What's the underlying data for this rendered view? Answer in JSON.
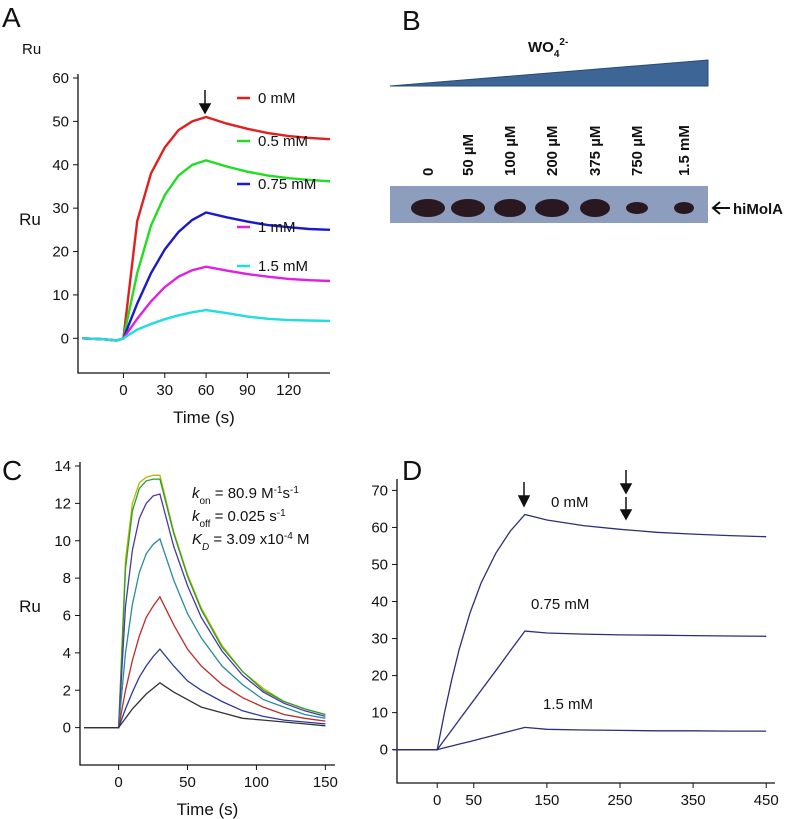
{
  "panels": [
    "A",
    "B",
    "C",
    "D"
  ],
  "chart_data": [
    {
      "type": "line",
      "unit_label": "Ru",
      "ylabel": "Ru",
      "xlabel": "Time (s)",
      "x": [
        -30,
        -15,
        -5,
        0,
        10,
        20,
        30,
        40,
        50,
        60,
        75,
        90,
        105,
        120,
        135,
        150
      ],
      "xlim": [
        -33,
        150
      ],
      "xticks": [
        0,
        30,
        60,
        90,
        120
      ],
      "ylim": [
        -8,
        60
      ],
      "yticks": [
        0,
        10,
        20,
        30,
        40,
        50,
        60
      ],
      "series": [
        {
          "name": "0 mM",
          "color": "#e02020",
          "values": [
            0,
            -0.2,
            -0.5,
            0,
            27,
            38,
            44,
            48,
            50,
            51,
            49.5,
            48.3,
            47.3,
            46.6,
            46.2,
            45.9
          ]
        },
        {
          "name": "0.5 mM",
          "color": "#22dd22",
          "values": [
            0,
            -0.2,
            -0.5,
            0,
            15,
            26,
            33,
            37.5,
            40,
            41,
            39.6,
            38.4,
            37.5,
            36.9,
            36.5,
            36.2
          ]
        },
        {
          "name": "0.75 mM",
          "color": "#1a1acc",
          "values": [
            0,
            -0.2,
            -0.5,
            0,
            8,
            15,
            20.5,
            24.5,
            27.3,
            29,
            27.9,
            26.9,
            26.1,
            25.6,
            25.2,
            25
          ]
        },
        {
          "name": "1 mM",
          "color": "#e020e0",
          "values": [
            0,
            -0.2,
            -0.5,
            0,
            4.5,
            8.5,
            11.8,
            14.2,
            15.7,
            16.5,
            15.6,
            14.8,
            14.2,
            13.7,
            13.4,
            13.2
          ]
        },
        {
          "name": "1.5 mM",
          "color": "#22dddd",
          "values": [
            0,
            -0.2,
            -0.5,
            0,
            2,
            3.3,
            4.4,
            5.3,
            6,
            6.5,
            5.8,
            5,
            4.5,
            4.2,
            4.1,
            4
          ]
        }
      ]
    },
    {
      "type": "line",
      "ylabel": "Ru",
      "xlabel": "Time (s)",
      "x": [
        -25,
        0,
        5,
        10,
        15,
        20,
        25,
        30,
        40,
        50,
        60,
        75,
        90,
        105,
        120,
        135,
        150
      ],
      "xlim": [
        -28,
        157
      ],
      "xticks": [
        0,
        50,
        100,
        150
      ],
      "ylim": [
        -2,
        14
      ],
      "yticks": [
        0,
        2,
        4,
        6,
        8,
        10,
        12,
        14
      ],
      "annotations": [
        [
          "k",
          "on",
          " = 80.9 M",
          "-1",
          "s",
          "-1"
        ],
        [
          "k",
          "off",
          " = 0.025 s",
          "-1"
        ],
        [
          "K",
          "D",
          " = 3.09 x10",
          "-4",
          " M"
        ]
      ],
      "series": [
        {
          "color": "#b8b800",
          "values": [
            0,
            0,
            9.0,
            12.0,
            13.1,
            13.4,
            13.5,
            13.5,
            10.5,
            8.2,
            6.4,
            4.4,
            3.0,
            2.1,
            1.4,
            1.0,
            0.7
          ]
        },
        {
          "color": "#2e9e2e",
          "values": [
            0,
            0,
            8.5,
            11.6,
            12.8,
            13.2,
            13.3,
            13.3,
            10.4,
            8.1,
            6.3,
            4.3,
            3.0,
            2.0,
            1.4,
            1.0,
            0.7
          ]
        },
        {
          "color": "#4a3aa0",
          "values": [
            0,
            0,
            6.5,
            9.5,
            11.2,
            12.0,
            12.4,
            12.5,
            9.7,
            7.6,
            5.9,
            4.1,
            2.8,
            1.9,
            1.3,
            0.9,
            0.6
          ]
        },
        {
          "color": "#2a8aa0",
          "values": [
            0,
            0,
            4.0,
            6.6,
            8.3,
            9.3,
            9.8,
            10.1,
            7.9,
            6.1,
            4.8,
            3.3,
            2.3,
            1.5,
            1.1,
            0.7,
            0.5
          ]
        },
        {
          "color": "#c02a2a",
          "values": [
            0,
            0,
            2.0,
            3.6,
            4.9,
            5.9,
            6.5,
            7.0,
            5.5,
            4.2,
            3.3,
            2.3,
            1.6,
            1.1,
            0.7,
            0.5,
            0.35
          ]
        },
        {
          "color": "#2a3a9a",
          "values": [
            0,
            0,
            1.0,
            1.9,
            2.7,
            3.3,
            3.8,
            4.2,
            3.3,
            2.5,
            2.0,
            1.4,
            0.9,
            0.6,
            0.4,
            0.3,
            0.2
          ]
        },
        {
          "color": "#333333",
          "values": [
            0,
            0,
            0.5,
            1.0,
            1.4,
            1.8,
            2.1,
            2.4,
            1.9,
            1.5,
            1.1,
            0.8,
            0.5,
            0.4,
            0.3,
            0.2,
            0.1
          ]
        }
      ]
    },
    {
      "type": "line",
      "xlabel": "Time (s)",
      "x": [
        -60,
        0,
        10,
        20,
        30,
        45,
        60,
        80,
        100,
        120,
        150,
        200,
        250,
        300,
        350,
        400,
        450
      ],
      "xlim": [
        -55,
        462
      ],
      "xticks": [
        0,
        50,
        150,
        250,
        350,
        450
      ],
      "ylim": [
        -9,
        72
      ],
      "yticks": [
        0,
        10,
        20,
        30,
        40,
        50,
        60,
        70
      ],
      "series": [
        {
          "name": "0 mM",
          "color": "#2e2e7a",
          "values": [
            0,
            0,
            10,
            19,
            27,
            37,
            45,
            53,
            59,
            63.5,
            62,
            60.5,
            59.5,
            58.7,
            58.2,
            57.8,
            57.5
          ]
        },
        {
          "name": "0.75 mM",
          "color": "#2e2e7a",
          "values": [
            0,
            0,
            2.7,
            5.3,
            8,
            12,
            16,
            21.3,
            26.7,
            32,
            31.5,
            31.2,
            31,
            30.9,
            30.8,
            30.7,
            30.6
          ]
        },
        {
          "name": "1.5 mM",
          "color": "#2e2e7a",
          "values": [
            0,
            0,
            0.5,
            1,
            1.5,
            2.2,
            3,
            4,
            5,
            6,
            5.5,
            5.3,
            5.2,
            5.1,
            5.1,
            5.0,
            5.0
          ]
        }
      ]
    }
  ],
  "blot": {
    "title": [
      "WO",
      "4",
      "2-"
    ],
    "lanes": [
      "0",
      "50 µM",
      "100 µM",
      "200 µM",
      "375 µM",
      "750 µM",
      "1.5 mM"
    ],
    "band_label": "hiMolA"
  }
}
